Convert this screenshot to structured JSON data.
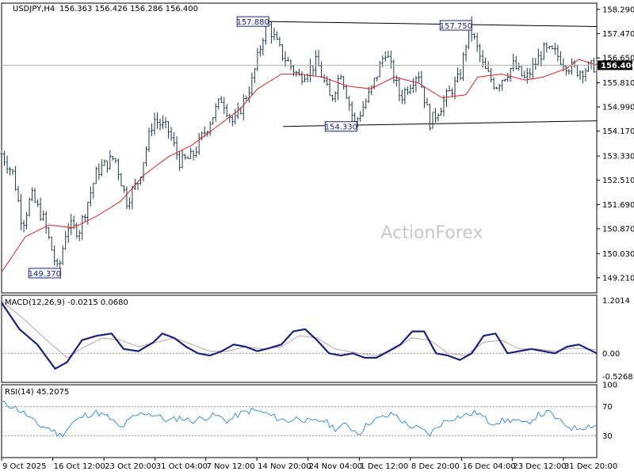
{
  "chart_data": {
    "type": "candlestick",
    "watermark": "ActionForex",
    "instrument": {
      "label": "USDJPY,H4",
      "ohlc_text": "156.363 156.426 156.286 156.400"
    },
    "price_panel": {
      "ylim": [
        148.7,
        158.5
      ],
      "yticks": [
        {
          "v": 158.29,
          "t": "158.290"
        },
        {
          "v": 157.47,
          "t": "157.470"
        },
        {
          "v": 156.65,
          "t": "156.650"
        },
        {
          "v": 155.81,
          "t": "155.810"
        },
        {
          "v": 154.99,
          "t": "154.990"
        },
        {
          "v": 154.17,
          "t": "154.170"
        },
        {
          "v": 153.33,
          "t": "153.330"
        },
        {
          "v": 152.51,
          "t": "152.510"
        },
        {
          "v": 151.69,
          "t": "151.690"
        },
        {
          "v": 150.87,
          "t": "150.870"
        },
        {
          "v": 150.03,
          "t": "150.030"
        },
        {
          "v": 149.21,
          "t": "149.210"
        }
      ],
      "current_price": {
        "v": 156.4,
        "t": "156.400"
      },
      "annotations": [
        {
          "t": "157.880",
          "x": 0.445,
          "v": 157.88
        },
        {
          "t": "157.750",
          "x": 0.786,
          "v": 157.75
        },
        {
          "t": "154.330",
          "x": 0.593,
          "v": 154.33
        },
        {
          "t": "149.370",
          "x": 0.095,
          "v": 149.37
        }
      ],
      "trendlines": [
        {
          "x1": 0.445,
          "v1": 157.88,
          "x2": 1.0,
          "v2": 157.71
        },
        {
          "x1": 0.473,
          "v1": 154.33,
          "x2": 1.0,
          "v2": 154.52
        }
      ],
      "key_points": [
        [
          0.0,
          153.4
        ],
        [
          0.02,
          152.7
        ],
        [
          0.035,
          151.0
        ],
        [
          0.05,
          152.0
        ],
        [
          0.07,
          151.2
        ],
        [
          0.095,
          149.37
        ],
        [
          0.11,
          151.0
        ],
        [
          0.13,
          150.8
        ],
        [
          0.16,
          152.8
        ],
        [
          0.19,
          153.3
        ],
        [
          0.21,
          151.8
        ],
        [
          0.23,
          152.5
        ],
        [
          0.255,
          154.6
        ],
        [
          0.28,
          154.2
        ],
        [
          0.3,
          153.1
        ],
        [
          0.32,
          153.3
        ],
        [
          0.35,
          154.5
        ],
        [
          0.37,
          155.3
        ],
        [
          0.39,
          154.4
        ],
        [
          0.42,
          155.8
        ],
        [
          0.445,
          157.88
        ],
        [
          0.47,
          156.8
        ],
        [
          0.5,
          156.0
        ],
        [
          0.53,
          156.5
        ],
        [
          0.553,
          155.2
        ],
        [
          0.57,
          156.2
        ],
        [
          0.593,
          154.4
        ],
        [
          0.62,
          155.5
        ],
        [
          0.645,
          156.9
        ],
        [
          0.67,
          155.3
        ],
        [
          0.7,
          156.2
        ],
        [
          0.72,
          154.45
        ],
        [
          0.75,
          155.4
        ],
        [
          0.77,
          156.0
        ],
        [
          0.786,
          157.75
        ],
        [
          0.81,
          156.3
        ],
        [
          0.83,
          155.7
        ],
        [
          0.86,
          156.4
        ],
        [
          0.88,
          155.9
        ],
        [
          0.91,
          156.9
        ],
        [
          0.93,
          156.8
        ],
        [
          0.95,
          156.4
        ],
        [
          0.97,
          156.2
        ],
        [
          1.0,
          156.4
        ]
      ],
      "ma_points": [
        [
          0.0,
          149.4
        ],
        [
          0.04,
          150.6
        ],
        [
          0.08,
          151.0
        ],
        [
          0.12,
          150.9
        ],
        [
          0.16,
          151.3
        ],
        [
          0.2,
          151.8
        ],
        [
          0.24,
          152.7
        ],
        [
          0.28,
          153.3
        ],
        [
          0.32,
          153.7
        ],
        [
          0.36,
          154.3
        ],
        [
          0.4,
          154.9
        ],
        [
          0.43,
          155.6
        ],
        [
          0.47,
          156.1
        ],
        [
          0.5,
          156.1
        ],
        [
          0.54,
          156.0
        ],
        [
          0.58,
          155.7
        ],
        [
          0.62,
          155.6
        ],
        [
          0.66,
          156.0
        ],
        [
          0.7,
          155.8
        ],
        [
          0.74,
          155.3
        ],
        [
          0.78,
          155.4
        ],
        [
          0.8,
          156.0
        ],
        [
          0.84,
          156.1
        ],
        [
          0.88,
          155.9
        ],
        [
          0.91,
          156.0
        ],
        [
          0.95,
          156.3
        ],
        [
          0.97,
          156.6
        ],
        [
          1.0,
          156.4
        ]
      ]
    },
    "macd_panel": {
      "label": "MACD(12,26,9) -0.0215 0.0680",
      "ylim": [
        -0.66,
        1.32
      ],
      "yticks": [
        {
          "v": 1.2014,
          "t": "1.2014"
        },
        {
          "v": 0.0,
          "t": "0.00"
        },
        {
          "v": -0.5268,
          "t": "-0.5268"
        }
      ],
      "current_label": "0.00",
      "macd_points": [
        [
          0.0,
          1.15
        ],
        [
          0.03,
          0.55
        ],
        [
          0.06,
          0.2
        ],
        [
          0.09,
          -0.35
        ],
        [
          0.11,
          -0.2
        ],
        [
          0.135,
          0.3
        ],
        [
          0.16,
          0.4
        ],
        [
          0.185,
          0.45
        ],
        [
          0.205,
          0.1
        ],
        [
          0.23,
          0.05
        ],
        [
          0.255,
          0.25
        ],
        [
          0.27,
          0.45
        ],
        [
          0.29,
          0.35
        ],
        [
          0.31,
          0.15
        ],
        [
          0.33,
          0.0
        ],
        [
          0.35,
          -0.05
        ],
        [
          0.37,
          0.05
        ],
        [
          0.39,
          0.2
        ],
        [
          0.41,
          0.15
        ],
        [
          0.43,
          0.05
        ],
        [
          0.45,
          0.12
        ],
        [
          0.47,
          0.2
        ],
        [
          0.49,
          0.5
        ],
        [
          0.51,
          0.55
        ],
        [
          0.53,
          0.3
        ],
        [
          0.55,
          0.0
        ],
        [
          0.57,
          -0.05
        ],
        [
          0.59,
          0.0
        ],
        [
          0.61,
          -0.1
        ],
        [
          0.63,
          -0.1
        ],
        [
          0.65,
          0.05
        ],
        [
          0.67,
          0.2
        ],
        [
          0.69,
          0.5
        ],
        [
          0.71,
          0.5
        ],
        [
          0.73,
          0.0
        ],
        [
          0.75,
          -0.05
        ],
        [
          0.77,
          -0.15
        ],
        [
          0.79,
          0.0
        ],
        [
          0.81,
          0.4
        ],
        [
          0.83,
          0.45
        ],
        [
          0.85,
          0.0
        ],
        [
          0.87,
          0.05
        ],
        [
          0.89,
          0.1
        ],
        [
          0.91,
          0.05
        ],
        [
          0.93,
          0.0
        ],
        [
          0.95,
          0.15
        ],
        [
          0.97,
          0.2
        ],
        [
          1.0,
          0.0
        ]
      ],
      "signal_points": [
        [
          0.0,
          1.2
        ],
        [
          0.04,
          0.75
        ],
        [
          0.08,
          0.25
        ],
        [
          0.11,
          -0.1
        ],
        [
          0.14,
          0.15
        ],
        [
          0.17,
          0.35
        ],
        [
          0.2,
          0.3
        ],
        [
          0.23,
          0.15
        ],
        [
          0.26,
          0.25
        ],
        [
          0.29,
          0.35
        ],
        [
          0.32,
          0.2
        ],
        [
          0.35,
          0.05
        ],
        [
          0.38,
          0.05
        ],
        [
          0.41,
          0.15
        ],
        [
          0.44,
          0.1
        ],
        [
          0.47,
          0.15
        ],
        [
          0.5,
          0.4
        ],
        [
          0.53,
          0.35
        ],
        [
          0.56,
          0.1
        ],
        [
          0.6,
          0.0
        ],
        [
          0.63,
          -0.05
        ],
        [
          0.66,
          0.1
        ],
        [
          0.69,
          0.35
        ],
        [
          0.72,
          0.3
        ],
        [
          0.75,
          0.0
        ],
        [
          0.78,
          -0.05
        ],
        [
          0.81,
          0.25
        ],
        [
          0.84,
          0.3
        ],
        [
          0.87,
          0.1
        ],
        [
          0.9,
          0.1
        ],
        [
          0.93,
          0.05
        ],
        [
          0.96,
          0.12
        ],
        [
          1.0,
          0.08
        ]
      ]
    },
    "rsi_panel": {
      "label": "RSI(14) 45.2075",
      "ylim": [
        0,
        100
      ],
      "yticks": [
        {
          "v": 100,
          "t": "100"
        },
        {
          "v": 70,
          "t": "70"
        },
        {
          "v": 30,
          "t": "30"
        },
        {
          "v": 0,
          "t": "0"
        }
      ],
      "levels": [
        70,
        30
      ],
      "rsi_points": [
        [
          0.0,
          75
        ],
        [
          0.02,
          70
        ],
        [
          0.04,
          60
        ],
        [
          0.06,
          45
        ],
        [
          0.08,
          40
        ],
        [
          0.1,
          30
        ],
        [
          0.12,
          48
        ],
        [
          0.14,
          58
        ],
        [
          0.16,
          62
        ],
        [
          0.18,
          55
        ],
        [
          0.2,
          40
        ],
        [
          0.22,
          55
        ],
        [
          0.24,
          62
        ],
        [
          0.26,
          58
        ],
        [
          0.28,
          50
        ],
        [
          0.3,
          55
        ],
        [
          0.32,
          50
        ],
        [
          0.34,
          55
        ],
        [
          0.36,
          58
        ],
        [
          0.38,
          50
        ],
        [
          0.4,
          60
        ],
        [
          0.42,
          65
        ],
        [
          0.44,
          62
        ],
        [
          0.46,
          55
        ],
        [
          0.48,
          50
        ],
        [
          0.5,
          55
        ],
        [
          0.52,
          48
        ],
        [
          0.54,
          52
        ],
        [
          0.56,
          40
        ],
        [
          0.58,
          45
        ],
        [
          0.6,
          33
        ],
        [
          0.62,
          50
        ],
        [
          0.64,
          55
        ],
        [
          0.66,
          60
        ],
        [
          0.68,
          45
        ],
        [
          0.7,
          40
        ],
        [
          0.72,
          32
        ],
        [
          0.74,
          48
        ],
        [
          0.76,
          55
        ],
        [
          0.78,
          58
        ],
        [
          0.8,
          62
        ],
        [
          0.82,
          48
        ],
        [
          0.84,
          50
        ],
        [
          0.86,
          52
        ],
        [
          0.88,
          45
        ],
        [
          0.9,
          58
        ],
        [
          0.92,
          62
        ],
        [
          0.94,
          48
        ],
        [
          0.96,
          40
        ],
        [
          1.0,
          45
        ]
      ]
    },
    "x_axis": {
      "labels": [
        {
          "t": "9 Oct 2025",
          "x": 0.0
        },
        {
          "t": "16 Oct 12:00",
          "x": 0.086
        },
        {
          "t": "23 Oct 20:00",
          "x": 0.172
        },
        {
          "t": "31 Oct 04:00",
          "x": 0.258
        },
        {
          "t": "7 Nov 12:00",
          "x": 0.343
        },
        {
          "t": "14 Nov 20:00",
          "x": 0.429
        },
        {
          "t": "24 Nov 04:00",
          "x": 0.515
        },
        {
          "t": "1 Dec 12:00",
          "x": 0.601
        },
        {
          "t": "8 Dec 20:00",
          "x": 0.687
        },
        {
          "t": "16 Dec 04:00",
          "x": 0.773
        },
        {
          "t": "23 Dec 12:00",
          "x": 0.858
        },
        {
          "t": "31 Dec 20:00",
          "x": 0.944
        }
      ]
    },
    "colors": {
      "ma": "#dd2222",
      "macd": "#1a237e",
      "signal": "#c0a0a8",
      "rsi": "#3b8fd6",
      "candle": "#1b3a4b",
      "box": "#1a237e"
    }
  }
}
